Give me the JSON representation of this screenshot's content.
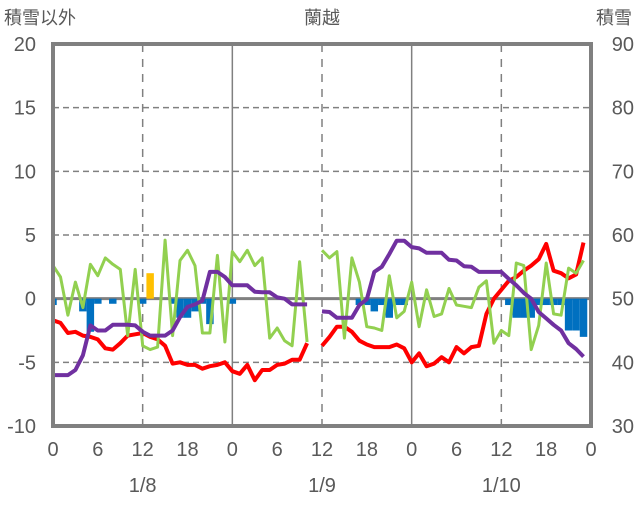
{
  "chart_data": {
    "type": "line",
    "title": "蘭越",
    "left_axis_label": "積雪以外",
    "right_axis_label": "積雪",
    "ylim_left": [
      -10,
      20
    ],
    "ylim_right": [
      30,
      90
    ],
    "yticks_left": [
      "20",
      "15",
      "10",
      "5",
      "0",
      "-5",
      "-10"
    ],
    "yticks_right": [
      "90",
      "80",
      "70",
      "60",
      "50",
      "40",
      "30"
    ],
    "xlim_hours": [
      0,
      72
    ],
    "xticks": [
      "0",
      "6",
      "12",
      "18",
      "0",
      "6",
      "12",
      "18",
      "0",
      "6",
      "12",
      "18",
      "0"
    ],
    "date_labels": [
      "1/8",
      "1/9",
      "1/10"
    ],
    "grid": true,
    "colors": {
      "temperature": "#FF0000",
      "snow_depth": "#7030A0",
      "green_series": "#92D050",
      "bar_negative": "#0070C0",
      "bar_positive": "#FFC000",
      "frame": "#808080"
    },
    "series": [
      {
        "name": "temperature",
        "axis": "left",
        "segments": [
          {
            "start_hour": 0,
            "values": [
              -1.7,
              -1.9,
              -2.7,
              -2.6,
              -2.9,
              -3.0,
              -3.2,
              -3.9,
              -4.0,
              -3.5,
              -2.9,
              -2.8,
              -2.7,
              -3.0,
              -3.2,
              -3.7,
              -5.1,
              -5.0,
              -5.2,
              -5.2,
              -5.5,
              -5.3,
              -5.2,
              -5.0,
              -5.7,
              -5.9,
              -5.2,
              -6.4,
              -5.6,
              -5.6,
              -5.2,
              -5.1,
              -4.8,
              -4.8,
              -3.5
            ]
          },
          {
            "start_hour": 36,
            "values": [
              -3.7,
              -3.0,
              -2.2,
              -2.2,
              -2.6,
              -3.3,
              -3.6,
              -3.8,
              -3.8,
              -3.8,
              -3.6,
              -3.9,
              -5.0,
              -4.3,
              -5.3,
              -5.1,
              -4.6,
              -5.0,
              -3.8,
              -4.3,
              -3.8,
              -3.7,
              -1.2,
              0.0,
              0.7,
              1.4,
              1.7,
              2.2,
              2.6,
              3.1,
              4.3,
              2.2,
              2.0,
              1.6,
              1.9,
              4.4
            ]
          }
        ]
      },
      {
        "name": "green_series",
        "axis": "left",
        "segments": [
          {
            "start_hour": 0,
            "values": [
              2.6,
              1.7,
              -1.3,
              1.3,
              -0.7,
              2.7,
              1.8,
              3.2,
              2.7,
              2.3,
              -2.9,
              2.3,
              -3.7,
              -4.0,
              -3.8,
              4.6,
              -2.9,
              3.0,
              3.8,
              2.6,
              -2.7,
              -2.7,
              3.4,
              -3.4,
              3.7,
              2.9,
              3.8,
              2.6,
              3.2,
              -3.1,
              -2.3,
              -3.3,
              -3.7,
              2.9,
              -3.4
            ]
          },
          {
            "start_hour": 36,
            "values": [
              3.8,
              3.2,
              3.7,
              -3.1,
              3.2,
              1.3,
              -2.2,
              -2.3,
              -2.5,
              1.8,
              -1.5,
              -1.0,
              1.3,
              -2.2,
              0.7,
              -1.4,
              -1.2,
              0.8,
              -0.5,
              -0.6,
              -0.7,
              0.9,
              1.4,
              -3.5,
              -2.5,
              -2.9,
              2.8,
              2.6,
              -4.0,
              -2.1,
              2.8,
              -1.2,
              -1.3,
              2.4,
              2.0,
              3.0
            ]
          }
        ]
      },
      {
        "name": "snow_depth",
        "axis": "right",
        "segments": [
          {
            "start_hour": 0,
            "values": [
              38.0,
              38.0,
              38.0,
              38.8,
              41.1,
              45.8,
              45.0,
              45.0,
              45.9,
              45.9,
              45.9,
              45.8,
              44.8,
              44.2,
              44.2,
              44.2,
              45.0,
              47.1,
              48.7,
              49.1,
              49.7,
              54.2,
              54.2,
              53.4,
              52.1,
              52.1,
              52.1,
              51.1,
              51.0,
              51.0,
              50.2,
              50.0,
              49.1,
              49.1,
              49.1
            ]
          },
          {
            "start_hour": 36,
            "values": [
              48.0,
              47.9,
              47.0,
              47.0,
              47.0,
              49.0,
              49.9,
              54.2,
              55.0,
              57.0,
              59.1,
              59.1,
              58.1,
              57.9,
              57.2,
              57.2,
              57.2,
              56.1,
              56.0,
              55.1,
              55.0,
              54.2,
              54.2,
              54.2,
              54.2,
              53.1,
              52.1,
              50.9,
              50.0,
              47.9,
              46.9,
              45.9,
              45.0,
              43.0,
              42.1,
              40.9
            ]
          }
        ]
      }
    ],
    "bars": {
      "name": "snow_change",
      "axis": "left",
      "hours": [
        0,
        4,
        5,
        6,
        8,
        12,
        13,
        16,
        17,
        18,
        19,
        20,
        21,
        24,
        41,
        42,
        43,
        44,
        45,
        46,
        47,
        61,
        62,
        63,
        64,
        65,
        66,
        67,
        68,
        69,
        70,
        71
      ],
      "values": [
        -0.5,
        -1.0,
        -2.6,
        -0.4,
        -0.4,
        -0.4,
        2.0,
        -0.4,
        -1.5,
        -1.5,
        -1.0,
        -0.4,
        -2.0,
        -0.4,
        -0.5,
        -0.5,
        -1.0,
        -0.5,
        -1.5,
        -0.5,
        -0.5,
        -0.5,
        -1.5,
        -1.5,
        -1.5,
        -0.5,
        -0.5,
        -0.5,
        -0.5,
        -2.5,
        -2.5,
        -3.0
      ]
    }
  }
}
